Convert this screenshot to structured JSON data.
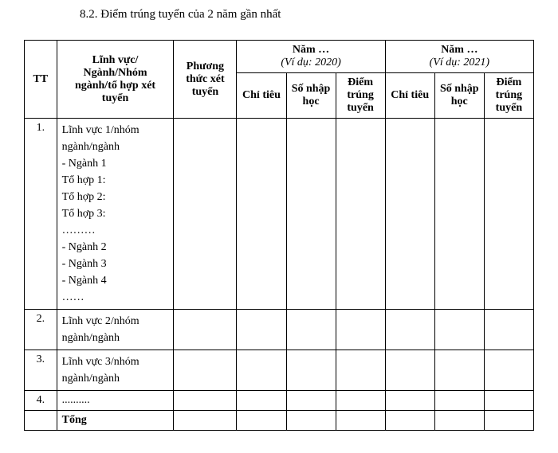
{
  "heading": "8.2. Điểm trúng tuyển của 2 năm gần nhất",
  "columns": {
    "tt": "TT",
    "linhvuc": "Lĩnh vực/ Ngành/Nhóm ngành/tổ hợp xét tuyển",
    "phuongthuc": "Phương thức xét tuyển",
    "year1_top": "Năm …",
    "year1_sub": "(Ví dụ: 2020)",
    "year2_top": "Năm …",
    "year2_sub": "(Ví dụ: 2021)",
    "chitieu": "Chỉ tiêu",
    "sonhap": "Số nhập học",
    "diemtrung": "Điểm trúng tuyển"
  },
  "rows": [
    {
      "tt": "1.",
      "content": "Lĩnh vực 1/nhóm ngành/ngành\n- Ngành 1\nTổ hợp 1:\nTổ hợp 2:\nTổ hợp 3:\n………\n- Ngành 2\n- Ngành 3\n- Ngành 4\n……"
    },
    {
      "tt": "2.",
      "content": "Lĩnh vực 2/nhóm ngành/ngành"
    },
    {
      "tt": "3.",
      "content": "Lĩnh vực 3/nhóm ngành/ngành"
    },
    {
      "tt": "4.",
      "content": ".........."
    }
  ],
  "total_label": "Tổng",
  "styling": {
    "font_family": "Times New Roman",
    "heading_fontsize": 15,
    "table_fontsize": 14,
    "border_color": "#000000",
    "background_color": "#ffffff",
    "text_color": "#000000",
    "col_widths": {
      "tt": 36,
      "linhvuc": 130,
      "phuong": 70,
      "sub": 55
    }
  }
}
